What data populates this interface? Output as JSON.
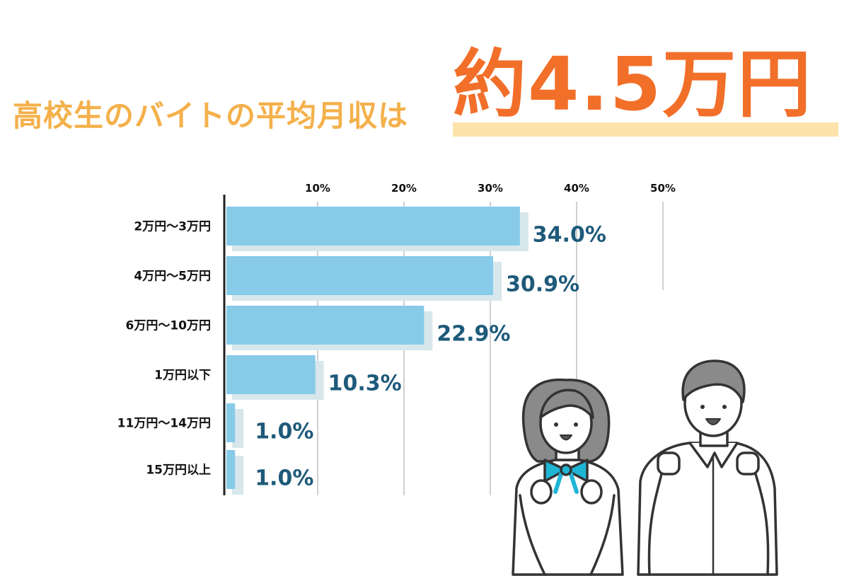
{
  "headline": {
    "part1": "高校生のバイトの平均月収は",
    "part2": "約4.5万円"
  },
  "colors": {
    "bar": "#87cbe9",
    "bar_shadow": "#d7e7ec",
    "value_label": "#1e5a7a",
    "title_light": "#f4b04a",
    "title_accent": "#f26f2a",
    "title_underline": "#fde3a9",
    "grid": "#d0d0d0"
  },
  "chart_data": {
    "type": "bar",
    "orientation": "horizontal",
    "title": "",
    "xlabel": "",
    "ylabel": "",
    "categories": [
      "2万円〜3万円",
      "4万円〜5万円",
      "6万円〜10万円",
      "1万円以下",
      "11万円〜14万円",
      "15万円以上"
    ],
    "values": [
      34.0,
      30.9,
      22.9,
      10.3,
      1.0,
      1.0
    ],
    "value_labels": [
      "34.0%",
      "30.9%",
      "22.9%",
      "10.3%",
      "1.0%",
      "1.0%"
    ],
    "xlim": [
      0,
      50
    ],
    "xticks": [
      "10%",
      "20%",
      "30%",
      "40%",
      "50%"
    ],
    "grid": true,
    "axis_position": "top"
  },
  "illustration": {
    "description_icon": "students-cheering-icon"
  }
}
